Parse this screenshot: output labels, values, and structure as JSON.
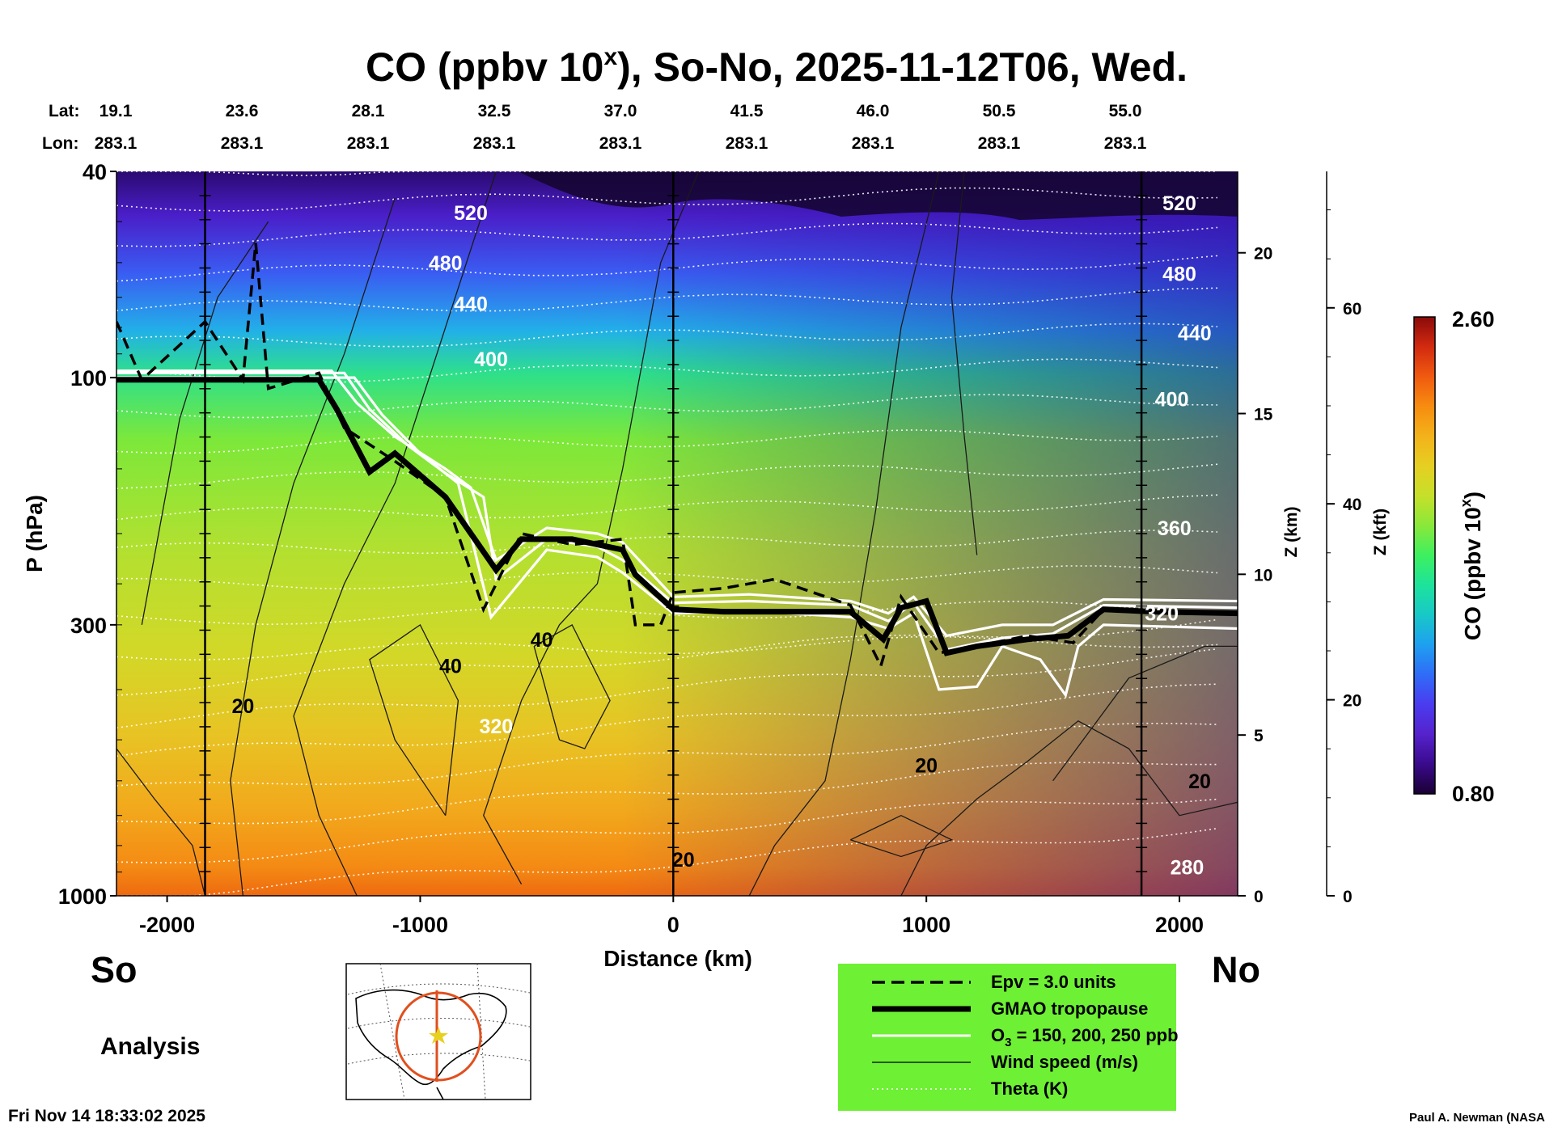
{
  "chart_data": {
    "type": "heatmap",
    "title_main": "CO (ppbv 10",
    "title_sup": "x",
    "title_rest": "), So-No, 2025-11-12T06, Wed.",
    "header": {
      "lat_label": "Lat:",
      "lon_label": "Lon:",
      "lat": [
        "19.1",
        "23.6",
        "28.1",
        "32.5",
        "37.0",
        "41.5",
        "46.0",
        "50.5",
        "55.0"
      ],
      "lon": [
        "283.1",
        "283.1",
        "283.1",
        "283.1",
        "283.1",
        "283.1",
        "283.1",
        "283.1",
        "283.1"
      ]
    },
    "xlabel": "Distance (km)",
    "xlim": [
      -2200,
      2230
    ],
    "xticks": [
      -2000,
      -1000,
      0,
      1000,
      2000
    ],
    "ylabel": "P (hPa)",
    "ylim": [
      1000,
      40
    ],
    "yticks": [
      40,
      100,
      300,
      1000
    ],
    "z_km_label": "Z (km)",
    "z_km_ticks": [
      0,
      5,
      10,
      15,
      20
    ],
    "z_kft_label": "Z (kft)",
    "z_kft_ticks": [
      0,
      20,
      40,
      60
    ],
    "colorbar": {
      "label_main": "CO (ppbv 10",
      "label_sup": "x",
      "label_rest": ")",
      "max": "2.60",
      "min": "0.80",
      "colors": [
        "#1a0033",
        "#3a0a8c",
        "#5522cc",
        "#4a3cf0",
        "#2f6cf7",
        "#1ea0f0",
        "#18c8c8",
        "#1de39b",
        "#3df05f",
        "#8ae83a",
        "#c6e02a",
        "#e6cf22",
        "#f3b21a",
        "#f78c10",
        "#f05a10",
        "#d22a10",
        "#8a0a0a"
      ]
    },
    "theta_K": [
      280,
      320,
      360,
      400,
      440,
      480,
      520
    ],
    "wind_labels": [
      20,
      40,
      40,
      20,
      20,
      20
    ],
    "gmao_tropopause": [
      [
        -2200,
        101
      ],
      [
        -2000,
        101
      ],
      [
        -1400,
        101
      ],
      [
        -1330,
        115
      ],
      [
        -1200,
        152
      ],
      [
        -1100,
        140
      ],
      [
        -900,
        170
      ],
      [
        -700,
        235
      ],
      [
        -600,
        205
      ],
      [
        -400,
        205
      ],
      [
        -200,
        215
      ],
      [
        -150,
        240
      ],
      [
        0,
        280
      ],
      [
        200,
        283
      ],
      [
        700,
        283
      ],
      [
        830,
        320
      ],
      [
        900,
        278
      ],
      [
        1000,
        270
      ],
      [
        1080,
        340
      ],
      [
        1200,
        330
      ],
      [
        1400,
        320
      ],
      [
        1560,
        315
      ],
      [
        1700,
        280
      ],
      [
        1900,
        283
      ],
      [
        2230,
        285
      ]
    ],
    "epv_3": [
      [
        -2200,
        78
      ],
      [
        -2100,
        101
      ],
      [
        -1850,
        78
      ],
      [
        -1700,
        101
      ],
      [
        -1650,
        55
      ],
      [
        -1600,
        105
      ],
      [
        -1400,
        98
      ],
      [
        -1300,
        125
      ],
      [
        -1100,
        145
      ],
      [
        -900,
        170
      ],
      [
        -750,
        280
      ],
      [
        -600,
        200
      ],
      [
        -400,
        210
      ],
      [
        -200,
        205
      ],
      [
        -150,
        300
      ],
      [
        -50,
        300
      ],
      [
        0,
        260
      ],
      [
        200,
        255
      ],
      [
        400,
        245
      ],
      [
        700,
        275
      ],
      [
        820,
        360
      ],
      [
        900,
        265
      ],
      [
        1050,
        340
      ],
      [
        1200,
        330
      ],
      [
        1400,
        315
      ],
      [
        1580,
        325
      ],
      [
        1700,
        280
      ],
      [
        2230,
        285
      ]
    ],
    "o3_contours": [
      {
        "name": "O3 150 ppb",
        "points": [
          [
            -2200,
            97
          ],
          [
            -1350,
            97
          ],
          [
            -1250,
            112
          ],
          [
            -1100,
            130
          ],
          [
            -900,
            150
          ],
          [
            -800,
            163
          ],
          [
            -700,
            225
          ],
          [
            -500,
            195
          ],
          [
            -300,
            200
          ],
          [
            -200,
            208
          ],
          [
            0,
            265
          ],
          [
            300,
            262
          ],
          [
            700,
            270
          ],
          [
            850,
            285
          ],
          [
            950,
            265
          ],
          [
            1080,
            315
          ],
          [
            1300,
            300
          ],
          [
            1500,
            300
          ],
          [
            1700,
            268
          ],
          [
            2230,
            270
          ]
        ]
      },
      {
        "name": "O3 200 ppb",
        "points": [
          [
            -2200,
            98
          ],
          [
            -1300,
            98
          ],
          [
            -1200,
            115
          ],
          [
            -1050,
            135
          ],
          [
            -900,
            153
          ],
          [
            -750,
            170
          ],
          [
            -700,
            245
          ],
          [
            -500,
            205
          ],
          [
            -300,
            212
          ],
          [
            -200,
            225
          ],
          [
            0,
            272
          ],
          [
            300,
            270
          ],
          [
            700,
            275
          ],
          [
            850,
            295
          ],
          [
            950,
            272
          ],
          [
            1080,
            335
          ],
          [
            1300,
            318
          ],
          [
            1500,
            312
          ],
          [
            1700,
            275
          ],
          [
            2230,
            278
          ]
        ]
      },
      {
        "name": "O3 250 ppb",
        "points": [
          [
            -2200,
            100
          ],
          [
            -1260,
            100
          ],
          [
            -1150,
            118
          ],
          [
            -1000,
            140
          ],
          [
            -850,
            160
          ],
          [
            -720,
            290
          ],
          [
            -500,
            215
          ],
          [
            -300,
            222
          ],
          [
            -200,
            238
          ],
          [
            0,
            285
          ],
          [
            300,
            282
          ],
          [
            700,
            290
          ],
          [
            850,
            305
          ],
          [
            950,
            285
          ],
          [
            1050,
            400
          ],
          [
            1200,
            395
          ],
          [
            1300,
            330
          ],
          [
            1450,
            350
          ],
          [
            1550,
            410
          ],
          [
            1600,
            330
          ],
          [
            1700,
            300
          ],
          [
            2230,
            305
          ]
        ]
      }
    ],
    "legend": [
      {
        "style": "dashed",
        "label": "Epv = 3.0 units"
      },
      {
        "style": "thick",
        "label": "GMAO tropopause"
      },
      {
        "style": "white",
        "label_main": "O",
        "label_sub": "3",
        "label_rest": " = 150, 200, 250 ppb"
      },
      {
        "style": "thin",
        "label": "Wind speed (m/s)"
      },
      {
        "style": "dotted",
        "label": "Theta (K)"
      }
    ]
  },
  "labels": {
    "south": "So",
    "north": "No",
    "mode": "Analysis",
    "timestamp": "Fri Nov 14 18:33:02 2025",
    "credit": "Paul A. Newman (NASA"
  }
}
